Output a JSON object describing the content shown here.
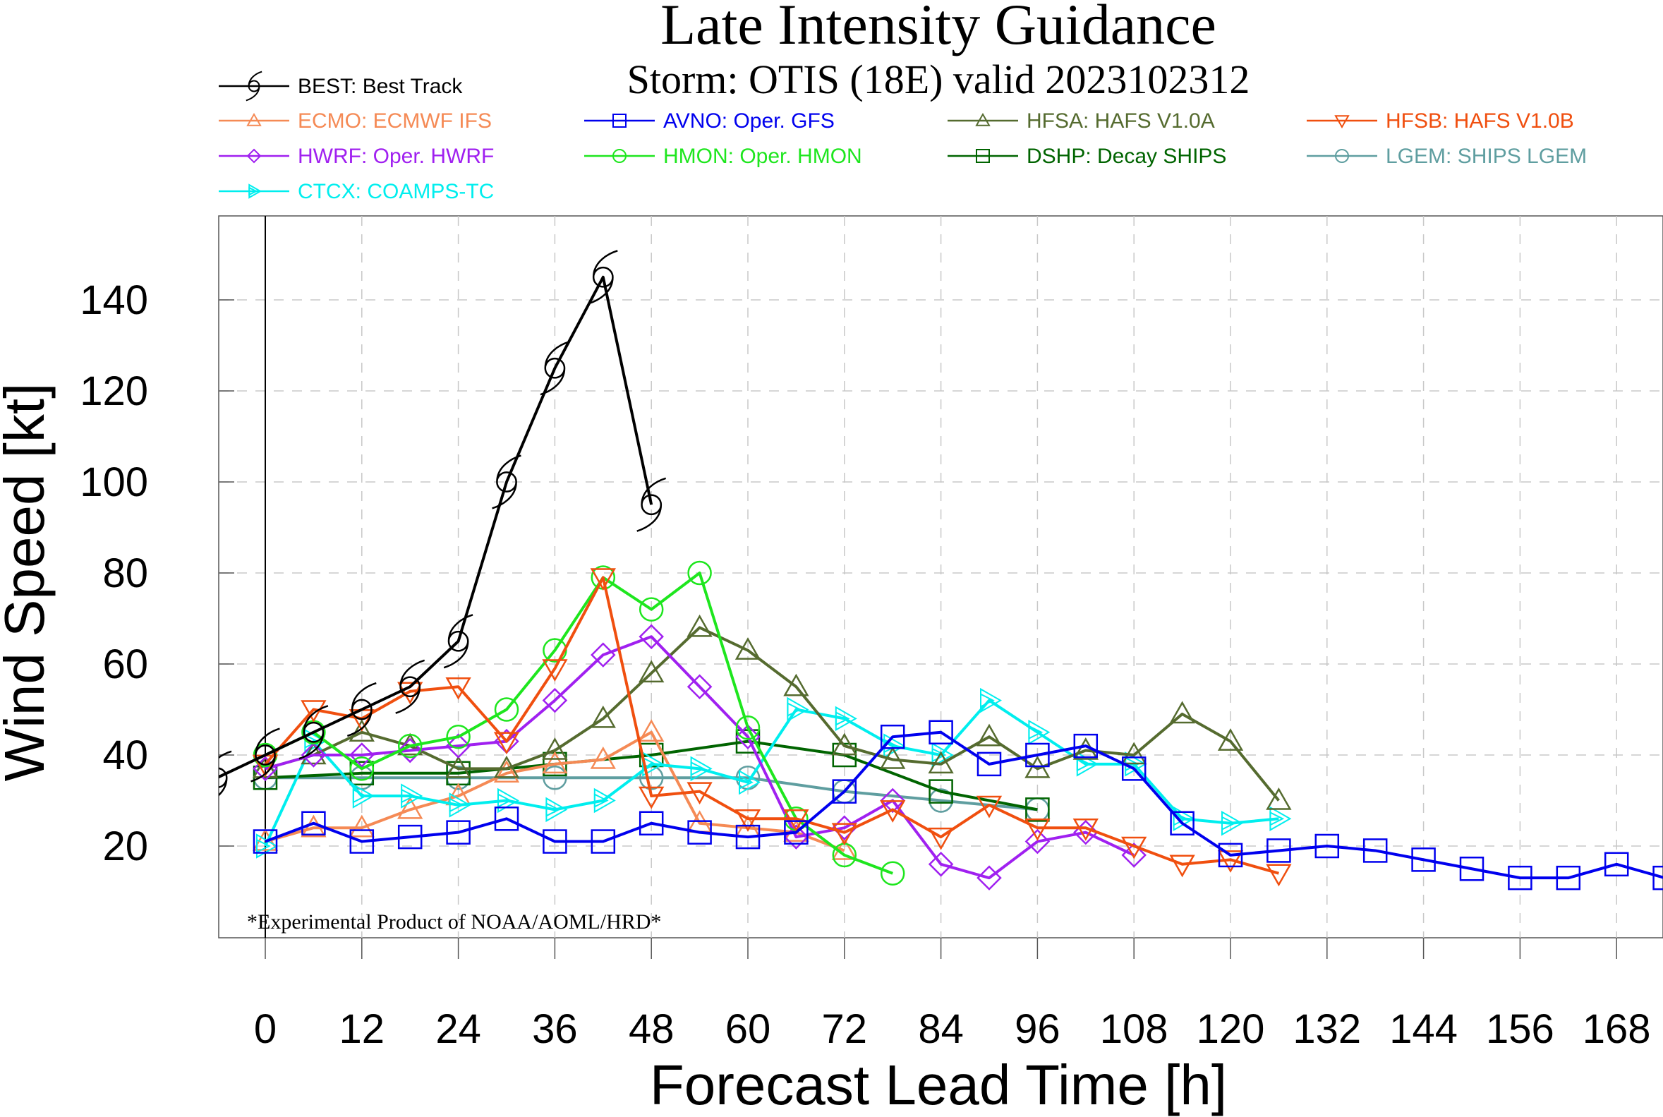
{
  "chart_data": {
    "type": "line",
    "title": "Late Intensity Guidance",
    "subtitle": "Storm: OTIS (18E) valid 2023102312",
    "xlabel": "Forecast Lead Time [h]",
    "ylabel": "Wind Speed [kt]",
    "xlim": [
      -10,
      174
    ],
    "ylim": [
      0,
      158
    ],
    "x_ticks": [
      0,
      12,
      24,
      36,
      48,
      60,
      72,
      84,
      96,
      108,
      120,
      132,
      144,
      156,
      168
    ],
    "y_ticks": [
      20,
      40,
      60,
      80,
      100,
      120,
      140
    ],
    "grid": true,
    "legend_placement": "top",
    "footnote": "*Experimental Product of NOAA/AOML/HRD*",
    "series": [
      {
        "name": "BEST: Best Track",
        "color": "#000000",
        "marker": "hurricane",
        "x": [
          -6,
          0,
          6,
          12,
          18,
          24,
          30,
          36,
          42,
          48
        ],
        "y": [
          35,
          40,
          45,
          50,
          55,
          65,
          100,
          125,
          145,
          95
        ]
      },
      {
        "name": "ECMO: ECMWF IFS",
        "color": "#f58a55",
        "marker": "triangle-up",
        "x": [
          0,
          6,
          12,
          18,
          24,
          30,
          36,
          42,
          48,
          54,
          60,
          66,
          72
        ],
        "y": [
          21,
          24,
          24,
          28,
          31,
          36,
          38,
          39,
          45,
          25,
          24,
          23,
          19
        ]
      },
      {
        "name": "AVNO: Oper. GFS",
        "color": "#0000ee",
        "marker": "square",
        "x": [
          0,
          6,
          12,
          18,
          24,
          30,
          36,
          42,
          48,
          54,
          60,
          66,
          72,
          78,
          84,
          90,
          96,
          102,
          108,
          114,
          120,
          126,
          132,
          138,
          144,
          150,
          156,
          162,
          168,
          174
        ],
        "y": [
          21,
          25,
          21,
          22,
          23,
          26,
          21,
          21,
          25,
          23,
          22,
          23,
          32,
          44,
          45,
          38,
          40,
          42,
          37,
          25,
          18,
          19,
          20,
          19,
          17,
          15,
          13,
          13,
          16,
          13
        ]
      },
      {
        "name": "HFSA: HAFS V1.0A",
        "color": "#556b2f",
        "marker": "triangle-up",
        "x": [
          0,
          6,
          12,
          18,
          24,
          30,
          36,
          42,
          48,
          54,
          60,
          66,
          72,
          78,
          84,
          90,
          96,
          102,
          108,
          114,
          120,
          126
        ],
        "y": [
          37,
          40,
          45,
          42,
          37,
          37,
          41,
          48,
          58,
          68,
          63,
          55,
          42,
          39,
          38,
          44,
          37,
          41,
          40,
          49,
          43,
          30
        ]
      },
      {
        "name": "HFSB: HAFS V1.0B",
        "color": "#f04f0f",
        "marker": "triangle-down",
        "x": [
          0,
          6,
          12,
          18,
          24,
          30,
          36,
          42,
          48,
          54,
          60,
          66,
          72,
          78,
          84,
          90,
          96,
          102,
          108,
          114,
          120,
          126
        ],
        "y": [
          38,
          50,
          48,
          54,
          55,
          43,
          59,
          79,
          31,
          32,
          26,
          26,
          23,
          28,
          22,
          29,
          24,
          24,
          20,
          16,
          17,
          14
        ]
      },
      {
        "name": "HWRF: Oper. HWRF",
        "color": "#a020f0",
        "marker": "diamond",
        "x": [
          0,
          6,
          12,
          18,
          24,
          30,
          36,
          42,
          48,
          54,
          60,
          66,
          72,
          78,
          84,
          90,
          96,
          102,
          108
        ],
        "y": [
          37,
          40,
          40,
          41,
          42,
          43,
          52,
          62,
          66,
          55,
          44,
          22,
          24,
          30,
          16,
          13,
          21,
          23,
          18
        ]
      },
      {
        "name": "HMON: Oper. HMON",
        "color": "#1ee61e",
        "marker": "circle",
        "x": [
          0,
          6,
          12,
          18,
          24,
          30,
          36,
          42,
          48,
          54,
          60,
          66,
          72,
          78
        ],
        "y": [
          40,
          45,
          37,
          42,
          44,
          50,
          63,
          79,
          72,
          80,
          46,
          26,
          18,
          14
        ]
      },
      {
        "name": "DSHP: Decay SHIPS",
        "color": "#006400",
        "marker": "square",
        "x": [
          0,
          12,
          24,
          36,
          48,
          60,
          72,
          84,
          96
        ],
        "y": [
          35,
          36,
          36,
          38,
          40,
          43,
          40,
          32,
          28
        ]
      },
      {
        "name": "LGEM: SHIPS LGEM",
        "color": "#5f9ea0",
        "marker": "circle",
        "x": [
          0,
          12,
          24,
          36,
          48,
          60,
          72,
          84,
          96
        ],
        "y": [
          35,
          35,
          35,
          35,
          35,
          35,
          32,
          30,
          28
        ]
      },
      {
        "name": "CTCX: COAMPS-TC",
        "color": "#00eeee",
        "marker": "triangle-right",
        "x": [
          0,
          6,
          12,
          18,
          24,
          30,
          36,
          42,
          48,
          54,
          60,
          66,
          72,
          78,
          84,
          90,
          96,
          102,
          108,
          114,
          120,
          126
        ],
        "y": [
          20,
          43,
          31,
          31,
          29,
          30,
          28,
          30,
          38,
          37,
          34,
          50,
          48,
          42,
          40,
          52,
          45,
          38,
          38,
          26,
          25,
          26
        ]
      }
    ]
  }
}
